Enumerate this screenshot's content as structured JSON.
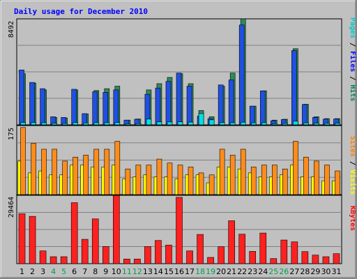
{
  "chart_data": {
    "type": "bar",
    "title": "Daily usage for December 2010",
    "categories": [
      "1",
      "2",
      "3",
      "4",
      "5",
      "6",
      "7",
      "8",
      "9",
      "10",
      "11",
      "12",
      "13",
      "14",
      "15",
      "16",
      "17",
      "18",
      "19",
      "20",
      "21",
      "22",
      "23",
      "24",
      "25",
      "26",
      "27",
      "28",
      "29",
      "30",
      "31"
    ],
    "weekend_days": [
      "4",
      "5",
      "11",
      "12",
      "18",
      "19",
      "25",
      "26"
    ],
    "panels": [
      {
        "id": "top",
        "max_label": "8492",
        "ymax": 8492,
        "legend": [
          {
            "text": "Pages",
            "color": "#00c8c8"
          },
          {
            "text": " / ",
            "color": "#000000"
          },
          {
            "text": "Files",
            "color": "#0000ff"
          },
          {
            "text": " / ",
            "color": "#000000"
          },
          {
            "text": "Hits",
            "color": "#00805c"
          }
        ],
        "series": [
          {
            "name": "Hits",
            "color": "#2e8b57",
            "values": [
              4100,
              3350,
              2800,
              600,
              550,
              2800,
              880,
              2750,
              2900,
              3100,
              380,
              470,
              2800,
              3300,
              3800,
              4100,
              3300,
              1150,
              650,
              3100,
              4150,
              8492,
              1500,
              2730,
              380,
              450,
              6100,
              1650,
              650,
              500,
              500
            ]
          },
          {
            "name": "Files",
            "color": "#2050e0",
            "values": [
              4400,
              3400,
              2900,
              650,
              600,
              2850,
              900,
              2650,
              2600,
              2800,
              380,
              450,
              2450,
              2950,
              3480,
              4150,
              3100,
              700,
              500,
              3200,
              3600,
              8000,
              1500,
              2720,
              330,
              430,
              5950,
              1630,
              600,
              460,
              470
            ]
          },
          {
            "name": "Pages",
            "color": "#00e0e0",
            "values": [
              190,
              180,
              170,
              120,
              110,
              180,
              150,
              175,
              175,
              185,
              90,
              95,
              460,
              240,
              230,
              240,
              220,
              900,
              400,
              180,
              170,
              210,
              160,
              170,
              90,
              110,
              290,
              160,
              130,
              120,
              130
            ]
          }
        ]
      },
      {
        "id": "mid",
        "max_label": "175",
        "ymax": 175,
        "legend": [
          {
            "text": "Sites",
            "color": "#ff8000"
          },
          {
            "text": " / ",
            "color": "#000000"
          },
          {
            "text": "Visits",
            "color": "#ffff00"
          }
        ],
        "series": [
          {
            "name": "Visits",
            "color": "#ffff00",
            "values": [
              85,
              55,
              60,
              50,
              50,
              75,
              75,
              70,
              70,
              75,
              40,
              45,
              50,
              45,
              45,
              40,
              50,
              50,
              30,
              70,
              70,
              65,
              55,
              45,
              45,
              50,
              75,
              45,
              45,
              35,
              35
            ]
          },
          {
            "name": "Sites",
            "color": "#ff8c1a",
            "values": [
              170,
              130,
              115,
              115,
              85,
              95,
              100,
              115,
              115,
              135,
              65,
              75,
              75,
              90,
              80,
              75,
              70,
              55,
              50,
              115,
              100,
              115,
              70,
              75,
              75,
              65,
              135,
              95,
              85,
              75,
              60
            ]
          }
        ]
      },
      {
        "id": "bot",
        "max_label": "29464",
        "ymax": 29464,
        "legend": [
          {
            "text": "KBytes",
            "color": "#ff0000"
          }
        ],
        "series": [
          {
            "name": "KBytes",
            "color": "#ff2020",
            "values": [
              21500,
              20400,
              5500,
              3000,
              3000,
              26300,
              10500,
              19300,
              7400,
              29400,
              2000,
              2000,
              7400,
              10000,
              8000,
              28600,
              5500,
              12600,
              2700,
              7300,
              18500,
              12700,
              5300,
              13200,
              2200,
              10200,
              9400,
              5200,
              3700,
              3000,
              4300
            ]
          }
        ]
      }
    ]
  }
}
